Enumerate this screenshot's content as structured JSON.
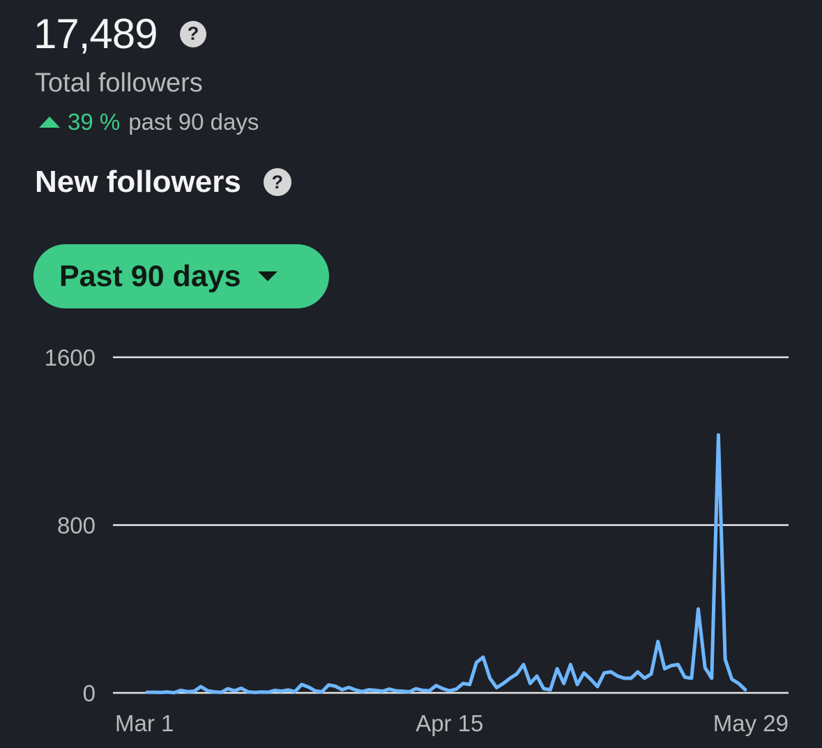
{
  "header": {
    "total_value": "17,489",
    "total_label": "Total followers",
    "trend_value": "39 %",
    "trend_text": "past 90 days",
    "help_glyph": "?"
  },
  "section": {
    "title": "New followers"
  },
  "range_selector": {
    "label": "Past 90 days"
  },
  "colors": {
    "accent": "#3ecb87",
    "line": "#6eb6ff",
    "background": "#1d2027"
  },
  "chart_data": {
    "type": "line",
    "ylim": [
      0,
      1600
    ],
    "y_ticks": [
      {
        "value": 0,
        "label": "0"
      },
      {
        "value": 800,
        "label": "800"
      },
      {
        "value": 1600,
        "label": "1600"
      }
    ],
    "x_ticks": [
      {
        "index": 0,
        "label": "Mar 1"
      },
      {
        "index": 45,
        "label": "Apr 15"
      },
      {
        "index": 89,
        "label": "May 29"
      }
    ],
    "grid": true,
    "series": [
      {
        "values": [
          3,
          3,
          2,
          4,
          1,
          12,
          6,
          8,
          30,
          10,
          5,
          2,
          20,
          10,
          22,
          5,
          2,
          4,
          3,
          12,
          8,
          14,
          6,
          40,
          28,
          10,
          5,
          38,
          32,
          15,
          26,
          14,
          6,
          15,
          12,
          8,
          18,
          10,
          8,
          5,
          20,
          12,
          10,
          35,
          20,
          10,
          18,
          45,
          40,
          145,
          170,
          70,
          25,
          45,
          70,
          90,
          135,
          45,
          80,
          20,
          15,
          115,
          45,
          135,
          40,
          95,
          65,
          30,
          95,
          100,
          80,
          70,
          70,
          100,
          70,
          90,
          245,
          115,
          130,
          135,
          75,
          70,
          400,
          120,
          70,
          1230,
          160,
          65,
          45,
          15
        ]
      }
    ]
  }
}
